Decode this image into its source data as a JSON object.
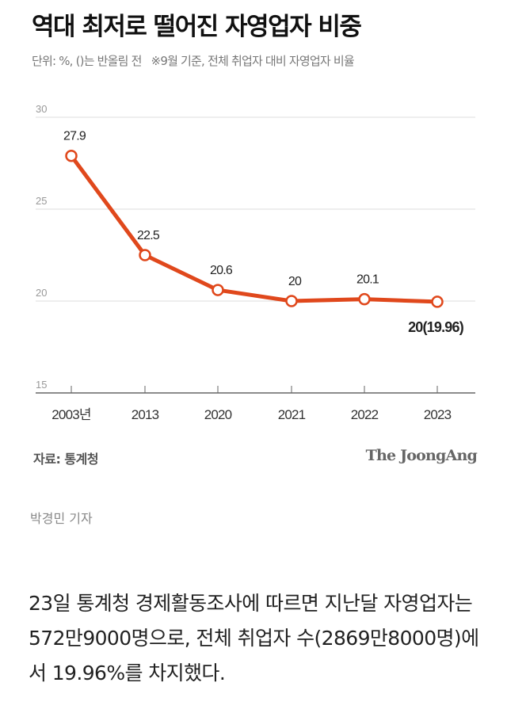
{
  "chart_data": {
    "type": "line",
    "title": "역대 최저로 떨어진 자영업자 비중",
    "subtitle": "단위: %, ()는 반올림 전   ※9월 기준, 전체 취업자 대비 자영업자 비율",
    "categories": [
      "2003년",
      "2013",
      "2020",
      "2021",
      "2022",
      "2023"
    ],
    "values": [
      27.9,
      22.5,
      20.6,
      20.0,
      20.1,
      19.96
    ],
    "data_labels": [
      "27.9",
      "22.5",
      "20.6",
      "20",
      "20.1",
      "20(19.96)"
    ],
    "yticks": [
      "30",
      "25",
      "20",
      "15"
    ],
    "ylim": [
      15,
      30
    ],
    "grid": true,
    "line_color": "#e0481c",
    "source": "자료: 통계청",
    "logo": "The JoongAng"
  },
  "article": {
    "byline": "박경민 기자",
    "body": "23일 통계청 경제활동조사에 따르면 지난달 자영업자는 572만9000명으로, 전체 취업자 수(2869만8000명)에서 19.96%를 차지했다."
  }
}
